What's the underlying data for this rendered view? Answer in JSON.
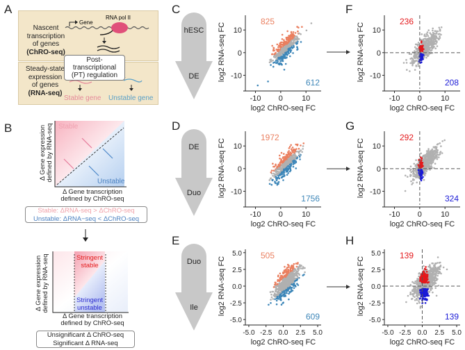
{
  "panel_letters": {
    "A": "A",
    "B": "B",
    "C": "C",
    "D": "D",
    "E": "E",
    "F": "F",
    "G": "G",
    "H": "H"
  },
  "panel_a": {
    "gene": "Gene",
    "pol": "RNA pol II",
    "nascent": [
      "Nascent",
      "transcription",
      "of genes",
      "(ChRO-seq)"
    ],
    "pt": [
      "Post-transcriptional",
      "(PT) regulation"
    ],
    "steady": [
      "Steady-state",
      "expression",
      "of genes",
      "(RNA-seq)"
    ],
    "stable": "Stable gene",
    "unstable": "Unstable gene"
  },
  "panel_b": {
    "ylabel1": "Δ Gene expression",
    "ylabel2": "defined by RNA-seq",
    "xlabel1": "Δ Gene transcription",
    "xlabel2": "defined by ChRO-seq",
    "stable": "Stable",
    "unstable": "Unstable",
    "rule_stable": "Stable:  ΔRNA-seq  >  ΔChRO-seq",
    "rule_unstable": "Unstable:  ΔRNA−seq  <  ΔChRO-seq",
    "stringent_stable": [
      "Stringent",
      "stable"
    ],
    "stringent_unstable": [
      "Stringent",
      "unstable"
    ],
    "crit1": "Unsignificant Δ ChRO-seq",
    "crit2": "Significant Δ RNA-seq"
  },
  "arrows": [
    {
      "from": "hESC",
      "to": "DE"
    },
    {
      "from": "DE",
      "to": "Duo"
    },
    {
      "from": "Duo",
      "to": "Ile"
    }
  ],
  "colors": {
    "stable": "#ea7f5f",
    "unstable": "#3d86b8",
    "stringent_stable": "#e4191c",
    "stringent_unstable": "#1a1ad6",
    "ns": "#b0b0b0",
    "tan": "#f3e6c9"
  },
  "chart_data": [
    {
      "panel": "C",
      "type": "scatter",
      "xlabel": "log2 ChRO-seq FC",
      "ylabel": "log2 RNA-seq FC",
      "xticks": [
        -10,
        0,
        10
      ],
      "yticks": [
        -10,
        0,
        10
      ],
      "xlim": [
        -14,
        16
      ],
      "ylim": [
        -16,
        16.5
      ],
      "up_count": "825",
      "down_count": "612",
      "mode": "diff",
      "grid": false
    },
    {
      "panel": "D",
      "type": "scatter",
      "xlabel": "log2 ChRO-seq FC",
      "ylabel": "log2 RNA-seq FC",
      "xticks": [
        -10,
        0,
        10
      ],
      "yticks": [
        -10,
        0,
        10
      ],
      "xlim": [
        -14,
        16
      ],
      "ylim": [
        -16,
        16.5
      ],
      "up_count": "1972",
      "down_count": "1756",
      "mode": "diff",
      "grid": false
    },
    {
      "panel": "E",
      "type": "scatter",
      "xlabel": "log2 ChRO-seq FC",
      "ylabel": "log2 RNA-seq FC",
      "xticks": [
        "-5.0",
        "-2.5",
        "0.0",
        "2.5",
        "5.0"
      ],
      "yticks": [
        "-5.0",
        "-2.5",
        "0.0",
        "2.5",
        "5.0"
      ],
      "xlim": [
        -5.5,
        5.5
      ],
      "ylim": [
        -5.5,
        5.5
      ],
      "up_count": "505",
      "down_count": "609",
      "mode": "diff",
      "grid": false
    },
    {
      "panel": "F",
      "type": "scatter",
      "xlabel": "log2 ChRO-seq FC",
      "ylabel": "log2 RNA-seq FC",
      "xticks": [
        -10,
        0,
        10
      ],
      "yticks": [
        -10,
        0,
        10
      ],
      "xlim": [
        -14,
        16
      ],
      "ylim": [
        -16,
        16.5
      ],
      "up_count": "236",
      "down_count": "208",
      "mode": "stringent",
      "grid": false
    },
    {
      "panel": "G",
      "type": "scatter",
      "xlabel": "log2 ChRO-seq FC",
      "ylabel": "log2 RNA-seq FC",
      "xticks": [
        -10,
        0,
        10
      ],
      "yticks": [
        -10,
        0,
        10
      ],
      "xlim": [
        -14,
        16
      ],
      "ylim": [
        -16,
        16.5
      ],
      "up_count": "292",
      "down_count": "324",
      "mode": "stringent",
      "grid": false
    },
    {
      "panel": "H",
      "type": "scatter",
      "xlabel": "log2 ChRO-seq FC",
      "ylabel": "log2 RNA-seq FC",
      "xticks": [
        "-5.0",
        "-2.5",
        "0.0",
        "2.5",
        "5.0"
      ],
      "yticks": [
        "-5.0",
        "-2.5",
        "0.0",
        "2.5",
        "5.0"
      ],
      "xlim": [
        -5.5,
        5.5
      ],
      "ylim": [
        -5.5,
        5.5
      ],
      "up_count": "139",
      "down_count": "139",
      "mode": "stringent",
      "grid": false
    }
  ]
}
